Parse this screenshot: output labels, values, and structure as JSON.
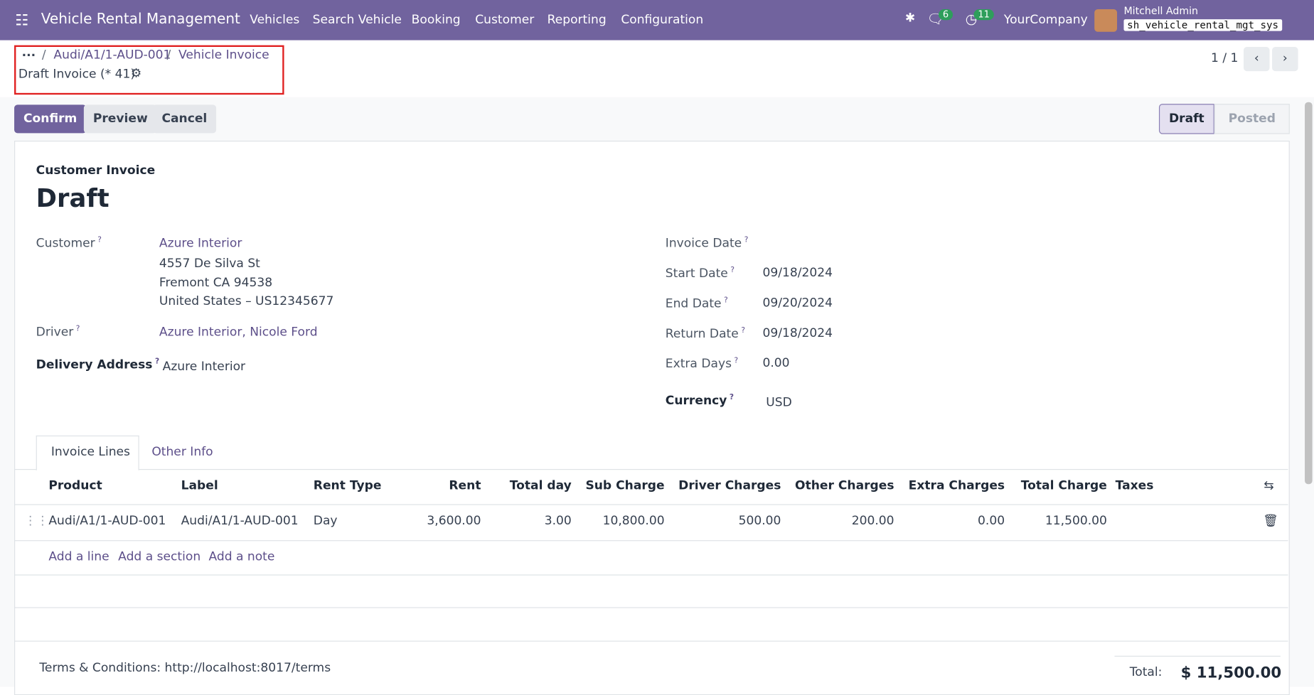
{
  "navbar": {
    "app_name": "Vehicle Rental Management",
    "menu": [
      "Vehicles",
      "Search Vehicle",
      "Booking",
      "Customer",
      "Reporting",
      "Configuration"
    ],
    "messages_badge": "6",
    "activities_badge": "11",
    "company": "YourCompany",
    "user": "Mitchell Admin",
    "database": "sh_vehicle_rental_mgt_sys"
  },
  "breadcrumb": {
    "items": [
      "Audi/A1/1-AUD-001",
      "Vehicle Invoice"
    ],
    "current": "Draft Invoice (* 41)"
  },
  "pager": "1 / 1",
  "buttons": [
    "Confirm",
    "Preview",
    "Cancel"
  ],
  "status": [
    "Draft",
    "Posted"
  ],
  "form": {
    "doc_type": "Customer Invoice",
    "name": "Draft",
    "customer": {
      "label": "Customer",
      "name": "Azure Interior",
      "address": [
        "4557 De Silva St",
        "Fremont CA 94538",
        "United States – US12345677"
      ]
    },
    "driver": {
      "label": "Driver",
      "value": "Azure Interior, Nicole Ford"
    },
    "delivery_address": {
      "label": "Delivery Address",
      "value": "Azure Interior"
    },
    "invoice_date": {
      "label": "Invoice Date"
    },
    "dates": [
      {
        "label": "Start Date",
        "value": "09/18/2024"
      },
      {
        "label": "End Date",
        "value": "09/20/2024"
      },
      {
        "label": "Return Date",
        "value": "09/18/2024"
      },
      {
        "label": "Extra Days",
        "value": "0.00"
      }
    ],
    "currency": {
      "label": "Currency",
      "value": "USD"
    }
  },
  "tabs": [
    "Invoice Lines",
    "Other Info"
  ],
  "table": {
    "columns": [
      "Product",
      "Label",
      "Rent Type",
      "Rent",
      "Total day",
      "Sub Charge",
      "Driver Charges",
      "Other Charges",
      "Extra Charges",
      "Total Charge",
      "Taxes"
    ],
    "rows": [
      [
        "Audi/A1/1-AUD-001",
        "Audi/A1/1-AUD-001",
        "Day",
        "3,600.00",
        "3.00",
        "10,800.00",
        "500.00",
        "200.00",
        "0.00",
        "11,500.00"
      ]
    ],
    "add_links": [
      "Add a line",
      "Add a section",
      "Add a note"
    ]
  },
  "terms": "Terms & Conditions: http://localhost:8017/terms",
  "total": {
    "label": "Total:",
    "value": "$ 11,500.00"
  }
}
